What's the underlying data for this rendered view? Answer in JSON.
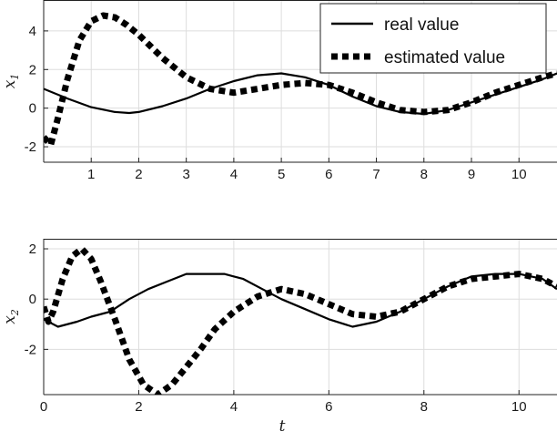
{
  "chart_data": [
    {
      "type": "line",
      "ylabel": "x",
      "ylabel_sub": "1",
      "xlabel": "",
      "xlim": [
        0,
        10.8
      ],
      "ylim": [
        -2.8,
        5.6
      ],
      "xticks": [
        1,
        2,
        3,
        4,
        5,
        6,
        7,
        8,
        9,
        10
      ],
      "yticks": [
        -2,
        0,
        2,
        4
      ],
      "grid": true,
      "legend_placement": "top-right",
      "series": [
        {
          "name": "real value",
          "style": "solid",
          "x": [
            0,
            0.5,
            1.0,
            1.5,
            1.8,
            2.0,
            2.5,
            3.0,
            3.5,
            4.0,
            4.5,
            5.0,
            5.5,
            6.0,
            6.5,
            7.0,
            7.5,
            8.0,
            8.5,
            9.0,
            9.5,
            10.0,
            10.5,
            10.8
          ],
          "y": [
            1.0,
            0.5,
            0.05,
            -0.2,
            -0.25,
            -0.2,
            0.1,
            0.5,
            1.0,
            1.4,
            1.7,
            1.8,
            1.6,
            1.2,
            0.6,
            0.1,
            -0.2,
            -0.3,
            -0.1,
            0.3,
            0.7,
            1.1,
            1.5,
            1.8
          ]
        },
        {
          "name": "estimated value",
          "style": "dotted",
          "x": [
            0,
            0.15,
            0.3,
            0.5,
            0.75,
            1.0,
            1.25,
            1.5,
            1.75,
            2.0,
            2.5,
            3.0,
            3.5,
            4.0,
            4.5,
            5.0,
            5.5,
            6.0,
            6.5,
            7.0,
            7.5,
            8.0,
            8.5,
            9.0,
            9.5,
            10.0,
            10.5,
            10.8
          ],
          "y": [
            -1.5,
            -1.9,
            -0.5,
            1.5,
            3.5,
            4.5,
            4.8,
            4.7,
            4.3,
            3.8,
            2.6,
            1.6,
            1.0,
            0.8,
            1.0,
            1.2,
            1.3,
            1.2,
            0.8,
            0.3,
            -0.1,
            -0.2,
            -0.1,
            0.3,
            0.8,
            1.2,
            1.6,
            1.8
          ]
        }
      ],
      "legend": [
        "real value",
        "estimated value"
      ]
    },
    {
      "type": "line",
      "ylabel": "x",
      "ylabel_sub": "2",
      "xlabel": "t",
      "xlim": [
        0,
        10.8
      ],
      "ylim": [
        -3.8,
        2.4
      ],
      "xticks": [
        0,
        2,
        4,
        6,
        8,
        10
      ],
      "yticks": [
        -2,
        0,
        2
      ],
      "grid": true,
      "series": [
        {
          "name": "real value",
          "style": "solid",
          "x": [
            0,
            0.3,
            0.7,
            1.0,
            1.4,
            1.8,
            2.2,
            2.6,
            3.0,
            3.4,
            3.8,
            4.2,
            4.6,
            5.0,
            5.5,
            6.0,
            6.5,
            7.0,
            7.5,
            8.0,
            8.5,
            9.0,
            9.5,
            10.0,
            10.5,
            10.8
          ],
          "y": [
            -0.8,
            -1.1,
            -0.9,
            -0.7,
            -0.5,
            0.0,
            0.4,
            0.7,
            1.0,
            1.0,
            1.0,
            0.8,
            0.4,
            0.0,
            -0.4,
            -0.8,
            -1.1,
            -0.9,
            -0.5,
            0.0,
            0.5,
            0.9,
            1.0,
            1.0,
            0.8,
            0.4
          ]
        },
        {
          "name": "estimated value",
          "style": "dotted",
          "x": [
            0,
            0.1,
            0.2,
            0.4,
            0.6,
            0.8,
            1.0,
            1.2,
            1.5,
            1.8,
            2.1,
            2.4,
            2.7,
            3.0,
            3.3,
            3.6,
            4.0,
            4.5,
            5.0,
            5.5,
            6.0,
            6.5,
            7.0,
            7.5,
            8.0,
            8.5,
            9.0,
            9.5,
            10.0,
            10.5,
            10.8
          ],
          "y": [
            -0.3,
            -0.9,
            -0.5,
            0.8,
            1.7,
            2.0,
            1.6,
            0.7,
            -0.8,
            -2.4,
            -3.4,
            -3.8,
            -3.4,
            -2.7,
            -2.0,
            -1.2,
            -0.5,
            0.1,
            0.4,
            0.2,
            -0.2,
            -0.6,
            -0.7,
            -0.5,
            0.0,
            0.5,
            0.8,
            0.9,
            1.0,
            0.8,
            0.5
          ]
        }
      ]
    }
  ]
}
